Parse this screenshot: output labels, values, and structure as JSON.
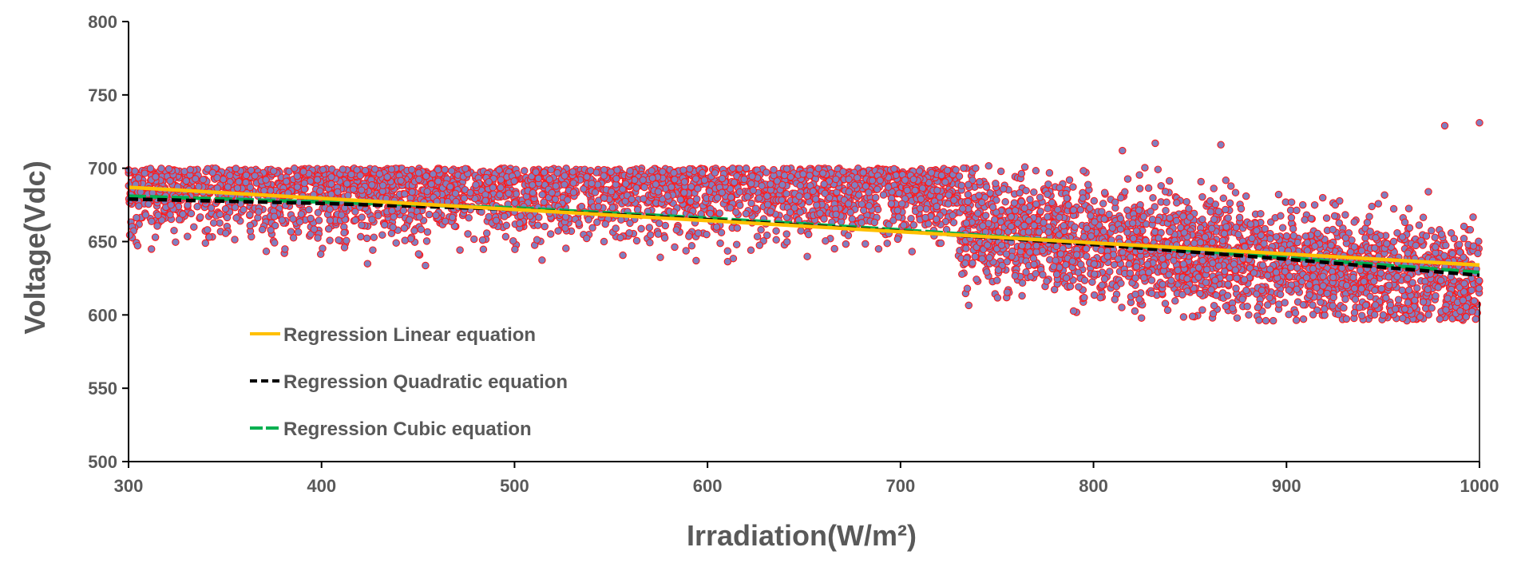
{
  "chart_data": {
    "type": "scatter",
    "title": "",
    "xlabel": "Irradiation(W/m²)",
    "ylabel": "Voltage(Vdc)",
    "xlim": [
      300,
      1000
    ],
    "ylim": [
      500,
      800
    ],
    "xticks": [
      "300",
      "400",
      "500",
      "600",
      "700",
      "800",
      "900",
      "1000"
    ],
    "yticks": [
      "500",
      "550",
      "600",
      "650",
      "700",
      "750",
      "800"
    ],
    "grid": false,
    "scatter_style": {
      "fill": "#8080c0",
      "stroke": "#ff1a1a"
    },
    "scatter_point_count": 5200,
    "scatter_outliers": [
      {
        "x": 815,
        "y": 712
      },
      {
        "x": 832,
        "y": 717
      },
      {
        "x": 866,
        "y": 716
      },
      {
        "x": 982,
        "y": 729
      },
      {
        "x": 1000,
        "y": 731
      }
    ],
    "series": [
      {
        "name": "Regression Linear equation",
        "kind": "linear",
        "color": "#ffc000",
        "dash": "solid",
        "x": [
          300,
          1000
        ],
        "y": [
          687,
          634
        ]
      },
      {
        "name": "Regression Quadratic equation",
        "kind": "quadratic",
        "color": "#000000",
        "dash": "dash",
        "x": [
          300,
          400,
          500,
          600,
          700,
          800,
          900,
          1000
        ],
        "y": [
          679,
          676,
          672,
          665,
          657,
          648,
          638,
          627
        ]
      },
      {
        "name": "Regression Cubic equation",
        "kind": "cubic",
        "color": "#00b050",
        "dash": "long-dash",
        "x": [
          300,
          400,
          500,
          600,
          700,
          800,
          900,
          1000
        ],
        "y": [
          681,
          677,
          673,
          666,
          658,
          649,
          639,
          629
        ]
      }
    ],
    "legend_position": "bottom-left"
  }
}
